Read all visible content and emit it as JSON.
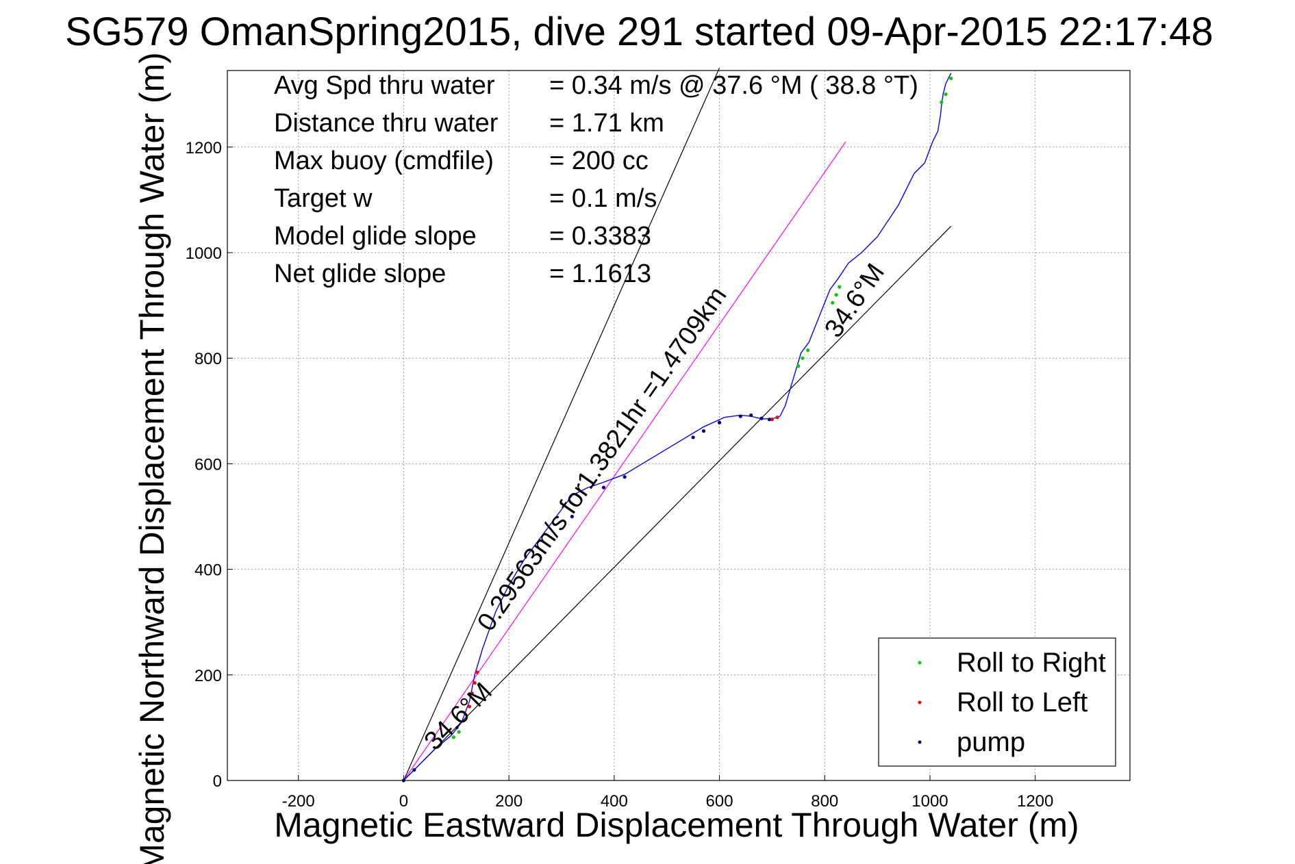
{
  "chart_data": {
    "type": "line",
    "title": "SG579 OmanSpring2015, dive 291 started 09-Apr-2015 22:17:48",
    "xlabel": "Magnetic Eastward Displacement Through Water (m)",
    "ylabel": "Magnetic Northward Displacement Through Water (m)",
    "xlim": [
      -335,
      1380
    ],
    "ylim": [
      0,
      1345
    ],
    "xticks": [
      -200,
      0,
      200,
      400,
      600,
      800,
      1000,
      1200
    ],
    "yticks": [
      0,
      200,
      400,
      600,
      800,
      1000,
      1200
    ],
    "grid": true,
    "stats": [
      {
        "label": "Avg Spd thru water",
        "value": "=  0.34 m/s @  37.6 °M ( 38.8 °T)"
      },
      {
        "label": "Distance thru water",
        "value": "=  1.71 km"
      },
      {
        "label": "Max buoy (cmdfile)",
        "value": "= 200 cc"
      },
      {
        "label": "Target w",
        "value": "= 0.1 m/s"
      },
      {
        "label": "Model glide slope",
        "value": "= 0.3383"
      },
      {
        "label": "Net glide slope",
        "value": "= 1.1613"
      }
    ],
    "legend": {
      "position": "bottom-right",
      "entries": [
        {
          "label": "Roll to Right",
          "color": "#00cc00"
        },
        {
          "label": "Roll to Left",
          "color": "#ff0000"
        },
        {
          "label": "pump",
          "color": "#000080"
        }
      ]
    },
    "reference_lines": [
      {
        "color": "#000000",
        "x": [
          0,
          600
        ],
        "y": [
          0,
          1350
        ]
      },
      {
        "color": "#ff00ff",
        "x": [
          0,
          840
        ],
        "y": [
          0,
          1210
        ]
      },
      {
        "color": "#000000",
        "x": [
          0,
          1040
        ],
        "y": [
          0,
          1050
        ]
      }
    ],
    "annotations": [
      {
        "text": "34.6°M",
        "x": 870,
        "y": 900,
        "angle": -55
      },
      {
        "text": "0.29563m/s for1.3821hr =1.4709km",
        "x": 390,
        "y": 600,
        "angle": -55
      },
      {
        "text": "34.6°M",
        "x": 115,
        "y": 110,
        "angle": -45
      }
    ],
    "series": [
      {
        "name": "track",
        "color": "#0000ff",
        "x": [
          0,
          10,
          30,
          60,
          90,
          110,
          125,
          135,
          150,
          175,
          200,
          230,
          260,
          290,
          320,
          350,
          380,
          420,
          470,
          520,
          570,
          610,
          640,
          660,
          680,
          700,
          715,
          725,
          740,
          755,
          770,
          790,
          810,
          825,
          845,
          870,
          900,
          940,
          970,
          990,
          1005,
          1015,
          1020,
          1022,
          1025,
          1030,
          1035,
          1040
        ],
        "y": [
          0,
          10,
          30,
          60,
          85,
          110,
          150,
          200,
          250,
          320,
          370,
          420,
          460,
          500,
          540,
          555,
          565,
          580,
          610,
          640,
          670,
          688,
          692,
          690,
          685,
          685,
          690,
          710,
          760,
          810,
          830,
          880,
          930,
          950,
          980,
          1000,
          1030,
          1090,
          1150,
          1170,
          1210,
          1230,
          1260,
          1280,
          1300,
          1320,
          1330,
          1340
        ]
      }
    ],
    "markers": {
      "roll_right": {
        "x": [
          95,
          105,
          750,
          758,
          768,
          815,
          822,
          828,
          1022,
          1030,
          1040
        ],
        "y": [
          82,
          92,
          785,
          800,
          815,
          905,
          920,
          935,
          1285,
          1300,
          1330
        ]
      },
      "roll_left": {
        "x": [
          125,
          130,
          135,
          140,
          700,
          710
        ],
        "y": [
          140,
          165,
          185,
          205,
          684,
          688
        ]
      },
      "pump": {
        "x": [
          0,
          20,
          320,
          380,
          420,
          550,
          570,
          600,
          640,
          660,
          680,
          695
        ],
        "y": [
          0,
          20,
          500,
          555,
          575,
          650,
          662,
          678,
          690,
          692,
          686,
          684
        ]
      }
    }
  }
}
